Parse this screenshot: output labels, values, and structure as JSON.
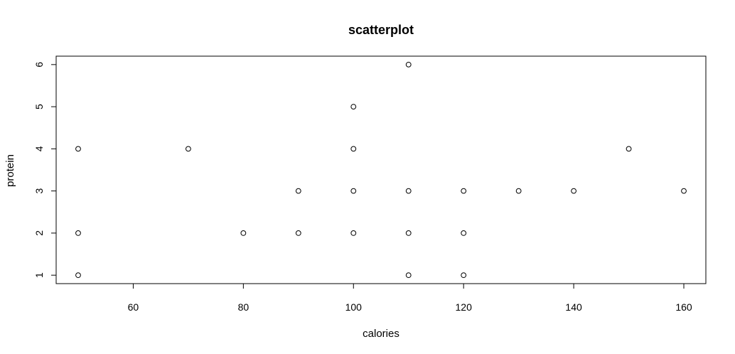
{
  "chart_data": {
    "type": "scatter",
    "title": "scatterplot",
    "xlabel": "calories",
    "ylabel": "protein",
    "xlim": [
      46,
      164
    ],
    "ylim": [
      0.8,
      6.2
    ],
    "x_ticks": [
      60,
      80,
      100,
      120,
      140,
      160
    ],
    "y_ticks": [
      1,
      2,
      3,
      4,
      5,
      6
    ],
    "grid": false,
    "marker": "open-circle",
    "colors": {
      "marker": "#000000",
      "axis": "#000000",
      "background": "#ffffff"
    },
    "points": [
      {
        "x": 50,
        "y": 4
      },
      {
        "x": 50,
        "y": 2
      },
      {
        "x": 50,
        "y": 1
      },
      {
        "x": 70,
        "y": 4
      },
      {
        "x": 80,
        "y": 2
      },
      {
        "x": 90,
        "y": 3
      },
      {
        "x": 90,
        "y": 2
      },
      {
        "x": 100,
        "y": 5
      },
      {
        "x": 100,
        "y": 4
      },
      {
        "x": 100,
        "y": 3
      },
      {
        "x": 100,
        "y": 2
      },
      {
        "x": 110,
        "y": 6
      },
      {
        "x": 110,
        "y": 3
      },
      {
        "x": 110,
        "y": 2
      },
      {
        "x": 110,
        "y": 1
      },
      {
        "x": 120,
        "y": 3
      },
      {
        "x": 120,
        "y": 2
      },
      {
        "x": 120,
        "y": 1
      },
      {
        "x": 130,
        "y": 3
      },
      {
        "x": 140,
        "y": 3
      },
      {
        "x": 150,
        "y": 4
      },
      {
        "x": 160,
        "y": 3
      }
    ]
  }
}
